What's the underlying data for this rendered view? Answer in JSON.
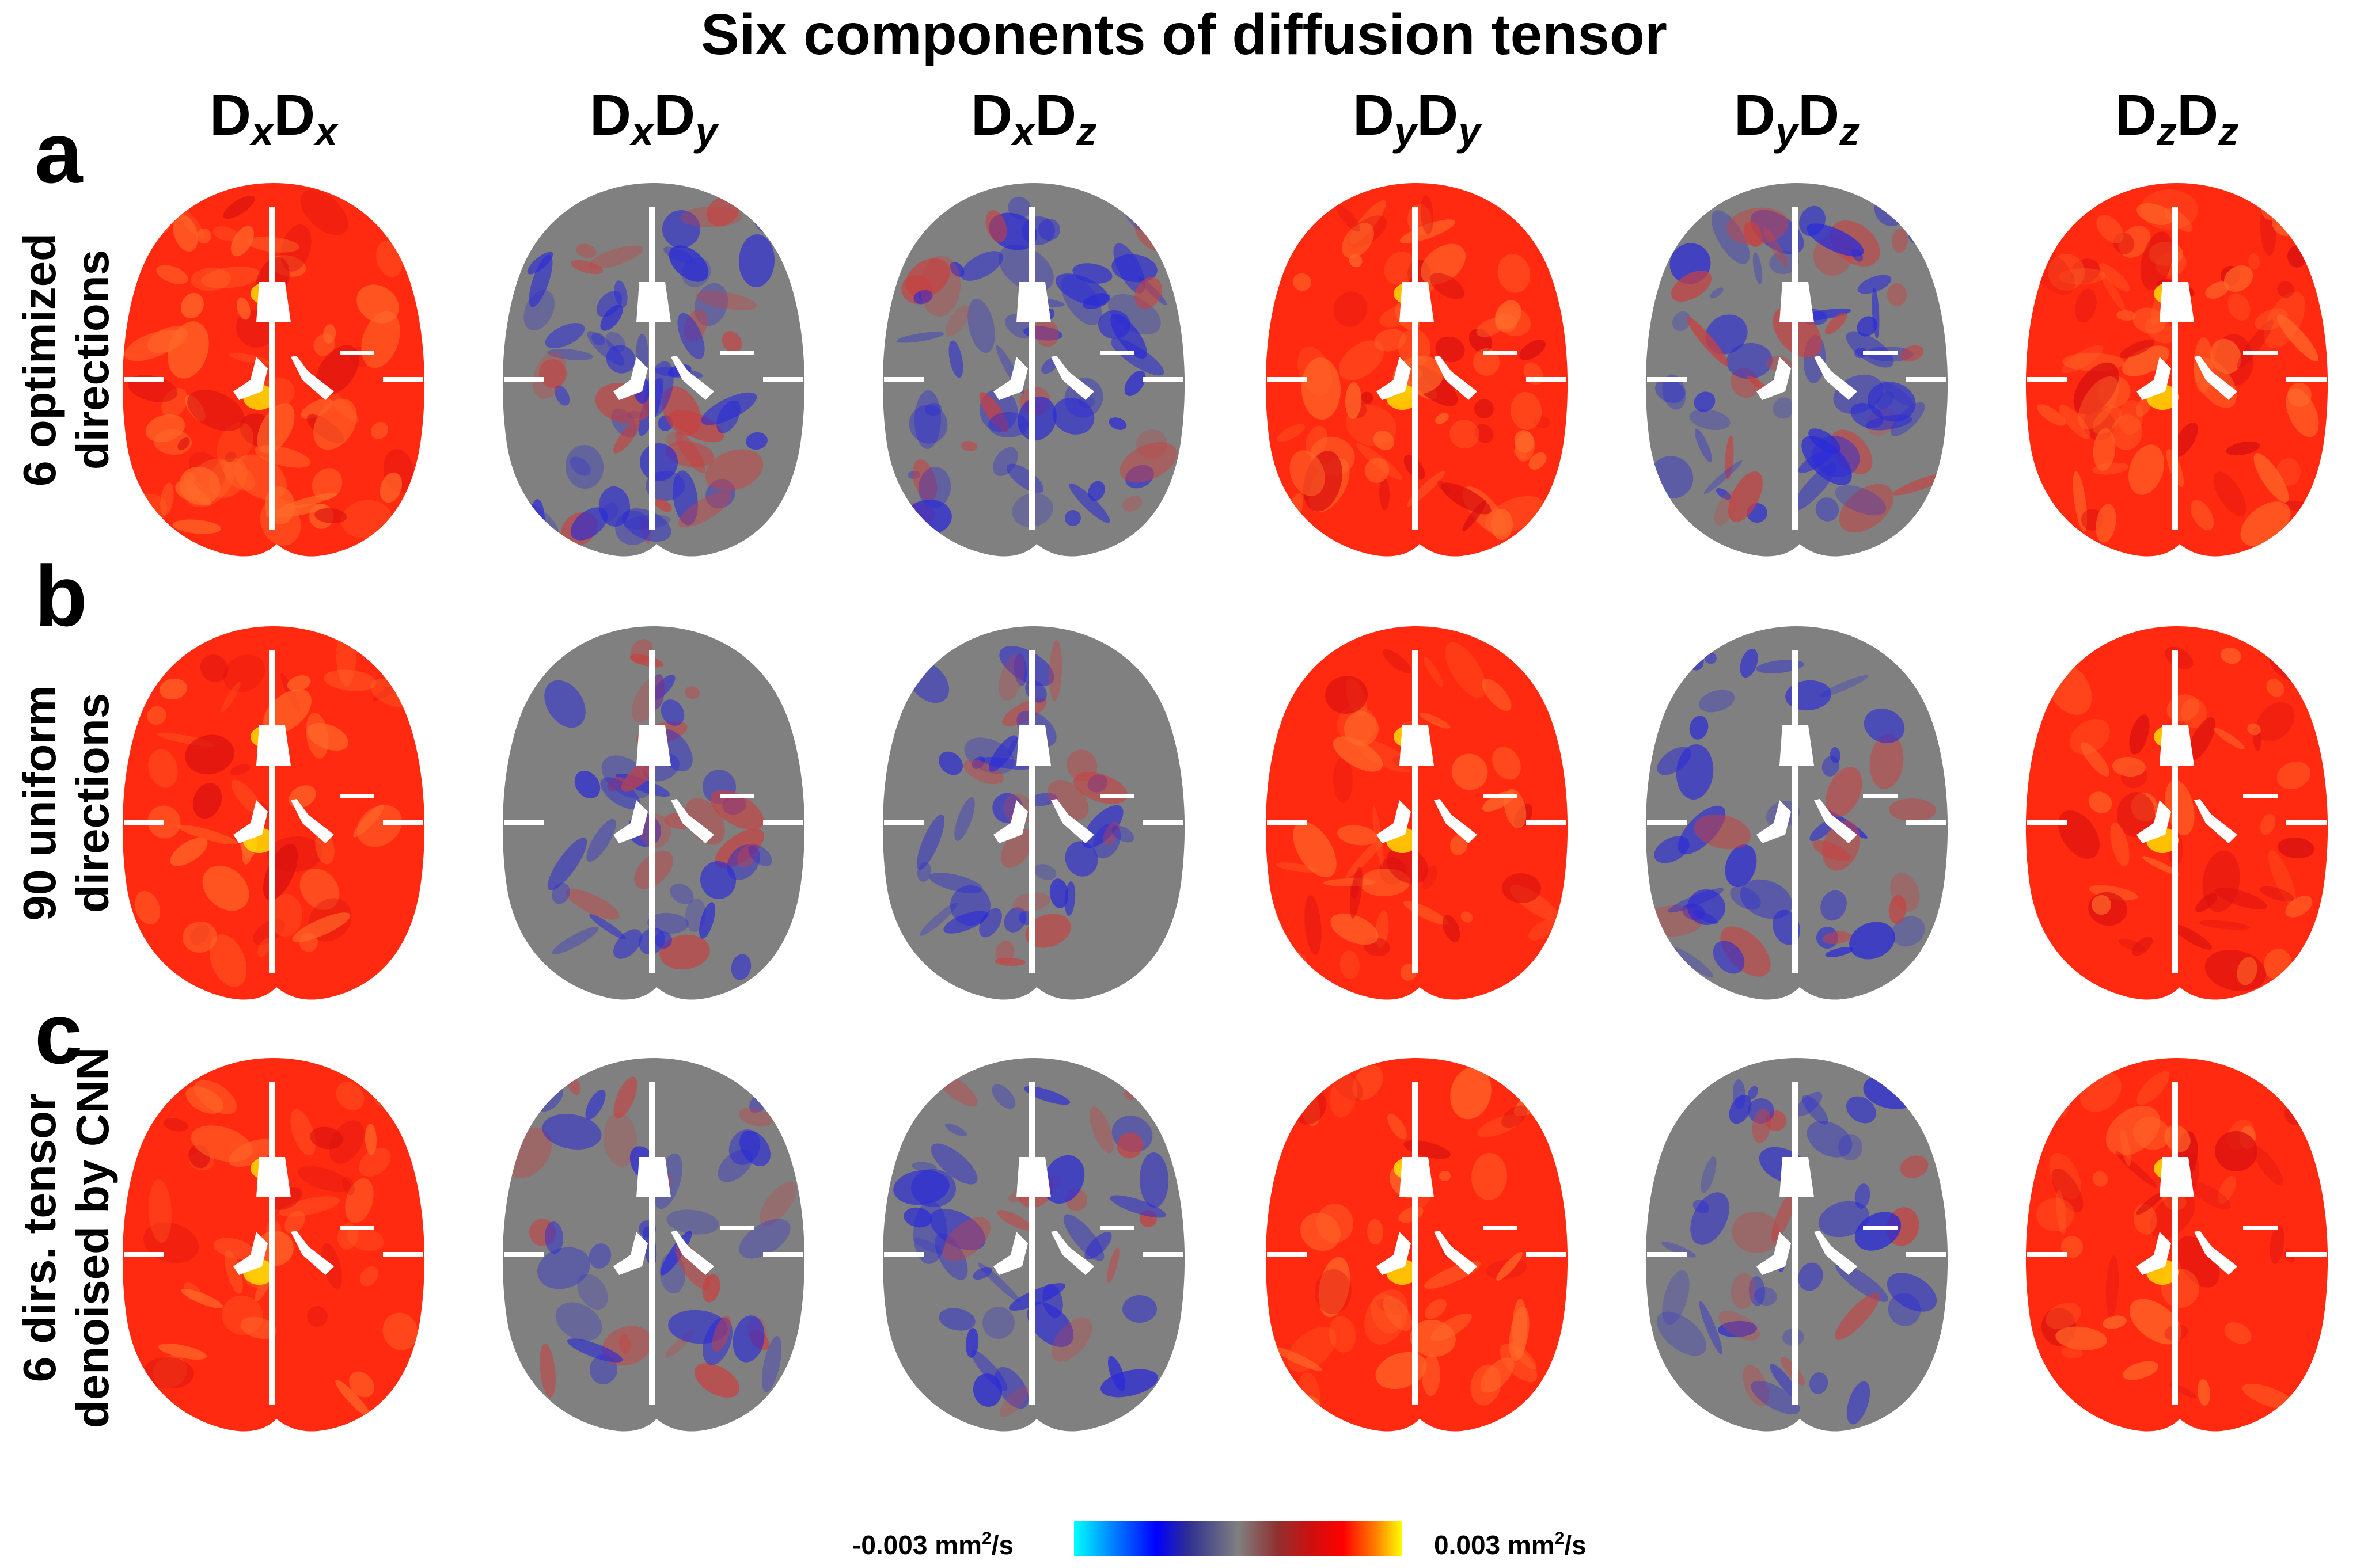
{
  "title": "Six components of diffusion tensor",
  "columns": [
    {
      "base1": "D",
      "sub1": "x",
      "base2": "D",
      "sub2": "x"
    },
    {
      "base1": "D",
      "sub1": "x",
      "base2": "D",
      "sub2": "y"
    },
    {
      "base1": "D",
      "sub1": "x",
      "base2": "D",
      "sub2": "z"
    },
    {
      "base1": "D",
      "sub1": "y",
      "base2": "D",
      "sub2": "y"
    },
    {
      "base1": "D",
      "sub1": "y",
      "base2": "D",
      "sub2": "z"
    },
    {
      "base1": "D",
      "sub1": "z",
      "base2": "D",
      "sub2": "z"
    }
  ],
  "rows": [
    {
      "letter": "a",
      "label_line1": "6 optimized",
      "label_line2": "directions"
    },
    {
      "letter": "b",
      "label_line1": "90 uniform",
      "label_line2": "directions"
    },
    {
      "letter": "c",
      "label_line1": "6 dirs. tensor",
      "label_line2": "denoised by CNN"
    }
  ],
  "colorbar": {
    "min_value": "-0.003",
    "max_value": "0.003",
    "unit_base": "mm",
    "unit_exp": "2",
    "unit_tail": "/s"
  },
  "colors": {
    "positive": "#ff2a10",
    "neutral": "#808080",
    "negative": "#2a2ad8",
    "bright": "#ffe600"
  }
}
